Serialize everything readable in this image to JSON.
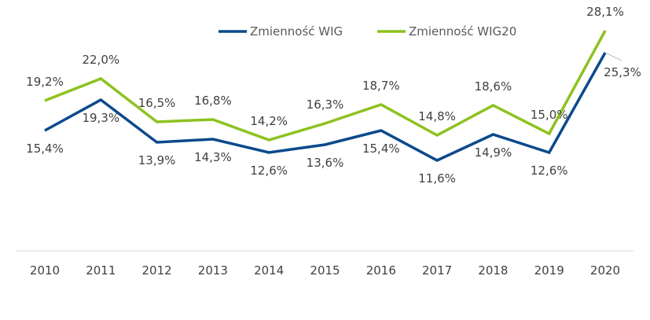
{
  "chart_data": {
    "type": "line",
    "title": "",
    "xlabel": "",
    "ylabel": "",
    "categories": [
      "2010",
      "2011",
      "2012",
      "2013",
      "2014",
      "2015",
      "2016",
      "2017",
      "2018",
      "2019",
      "2020"
    ],
    "ylim": [
      0,
      32
    ],
    "grid": false,
    "legend_position": "top-right",
    "series": [
      {
        "name": "Zmienność WIG",
        "color": "#0B4A8B",
        "values": [
          15.4,
          19.3,
          13.9,
          14.3,
          12.6,
          13.6,
          15.4,
          11.6,
          14.9,
          12.6,
          25.3
        ],
        "labels": [
          "15,4%",
          "19,3%",
          "13,9%",
          "14,3%",
          "12,6%",
          "13,6%",
          "15,4%",
          "11,6%",
          "14,9%",
          "12,6%",
          "25,3%"
        ]
      },
      {
        "name": "Zmienność WIG20",
        "color": "#8DC21F",
        "values": [
          19.2,
          22.0,
          16.5,
          16.8,
          14.2,
          16.3,
          18.7,
          14.8,
          18.6,
          15.0,
          28.1
        ],
        "labels": [
          "19,2%",
          "22,0%",
          "16,5%",
          "16,8%",
          "14,2%",
          "16,3%",
          "18,7%",
          "14,8%",
          "18,6%",
          "15,0%",
          "28,1%"
        ]
      }
    ]
  }
}
